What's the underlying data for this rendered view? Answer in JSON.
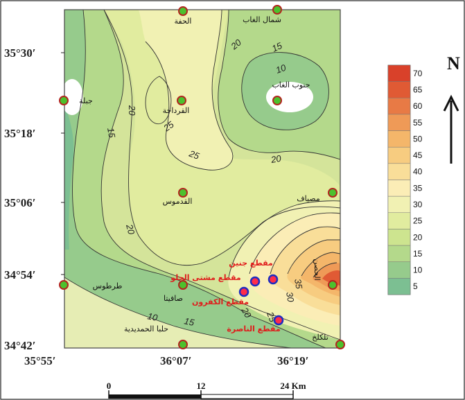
{
  "map": {
    "latitude_labels": [
      "35°30′",
      "35°18′",
      "35°06′",
      "34°54′",
      "34°42′"
    ],
    "longitude_labels": [
      "35°55′",
      "36°07′",
      "36°19′"
    ],
    "places": [
      {
        "name": "الحفة"
      },
      {
        "name": "شمال الغاب"
      },
      {
        "name": "جنوب الغاب"
      },
      {
        "name": "جبلة"
      },
      {
        "name": "القرداحة"
      },
      {
        "name": "القدموس"
      },
      {
        "name": "مصياف"
      },
      {
        "name": "طرطوس"
      },
      {
        "name": "صافيتا"
      },
      {
        "name": "حلبا الحمديدية"
      },
      {
        "name": "تلكلخ"
      },
      {
        "name": "الحصن"
      }
    ],
    "sections": [
      {
        "name": "مقطع جنين"
      },
      {
        "name": "مقطع مشتى الحلو"
      },
      {
        "name": "مقطع الكفرون"
      },
      {
        "name": "مقطع الناصرة"
      }
    ],
    "contour_labels": [
      "20",
      "15",
      "10",
      "20",
      "25",
      "15",
      "25",
      "20",
      "20",
      "10",
      "15",
      "20",
      "25",
      "30",
      "35"
    ],
    "legend": {
      "values": [
        "70",
        "65",
        "60",
        "55",
        "50",
        "45",
        "40",
        "35",
        "30",
        "25",
        "20",
        "15",
        "10",
        "5"
      ],
      "colors": [
        "#d9412a",
        "#e05a34",
        "#e87a45",
        "#ef9a57",
        "#f4b66a",
        "#f7cc80",
        "#f9de99",
        "#fbedb6",
        "#f1f1b3",
        "#e1ec9f",
        "#cde48f",
        "#b4d98b",
        "#96cb8c",
        "#7cbf92"
      ]
    },
    "north_label": "N",
    "scale": {
      "ticks": [
        "0",
        "12",
        "24 Km"
      ]
    }
  }
}
